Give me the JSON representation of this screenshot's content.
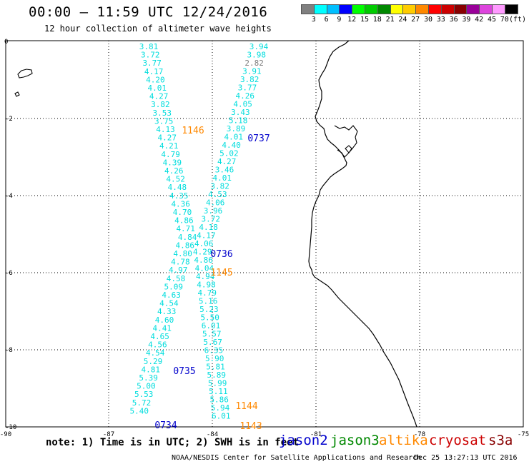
{
  "title": "00:00 — 11:59 UTC 12/24/2016",
  "subtitle": "12 hour collection of altimeter wave heights",
  "color_scale": {
    "labels": [
      "3",
      "6",
      "9",
      "12",
      "15",
      "18",
      "21",
      "24",
      "27",
      "30",
      "33",
      "36",
      "39",
      "42",
      "45",
      "70"
    ],
    "unit": "(ft)",
    "colors": [
      "#808080",
      "#00ffff",
      "#00bfff",
      "#0000ff",
      "#00ff00",
      "#00cc00",
      "#008800",
      "#ffff00",
      "#ffcc00",
      "#ff8800",
      "#ff0000",
      "#cc0000",
      "#880000",
      "#990099",
      "#dd44dd",
      "#ff99ff",
      "#000000"
    ]
  },
  "axes": {
    "lat_labels": [
      "0",
      "-2",
      "-4",
      "-6",
      "-8",
      "-10"
    ],
    "lon_labels": [
      "-90",
      "-87",
      "-84",
      "-81",
      "-78",
      "-75"
    ]
  },
  "tracks": [
    {
      "satellite": "jason2",
      "pass_labels": [
        {
          "text": "0737",
          "color": "#0000cc"
        },
        {
          "text": "0736",
          "color": "#0000cc"
        },
        {
          "text": "0735",
          "color": "#0000cc"
        },
        {
          "text": "0734",
          "color": "#0000cc"
        }
      ]
    },
    {
      "satellite": "altika",
      "pass_labels": [
        {
          "text": "1146",
          "color": "#ff8800"
        },
        {
          "text": "1145",
          "color": "#ff8800"
        },
        {
          "text": "1144",
          "color": "#ff8800"
        },
        {
          "text": "1143",
          "color": "#ff8800"
        }
      ]
    }
  ],
  "track_left_values": [
    "3.81",
    "3.72",
    "3.77",
    "4.17",
    "4.20",
    "4.01",
    "4.27",
    "3.82",
    "3.53",
    "3.75",
    "4.13",
    "4.27",
    "4.21",
    "4.79",
    "4.39",
    "4.26",
    "4.52",
    "4.48",
    "4.35",
    "4.36",
    "4.70",
    "4.86",
    "4.71",
    "4.84",
    "4.86",
    "4.80",
    "4.78",
    "4.97",
    "4.58",
    "5.09",
    "4.63",
    "4.54",
    "4.33",
    "4.60",
    "4.41",
    "4.65",
    "4.56",
    "4.54",
    "5.29",
    "4.81",
    "5.39",
    "5.00",
    "5.53",
    "5.72",
    "5.40"
  ],
  "track_right_values": [
    "3.94",
    "3.98",
    "2.82",
    "3.91",
    "3.82",
    "3.77",
    "4.26",
    "4.05",
    "3.43",
    "5.18",
    "3.89",
    "4.01",
    "4.40",
    "5.02",
    "4.27",
    "3.46",
    "4.01",
    "3.82",
    "4.53",
    "4.06",
    "3.96",
    "3.72",
    "4.18",
    "4.17",
    "4.06",
    "4.29",
    "4.86",
    "4.04",
    "4.94",
    "4.98",
    "4.79",
    "5.16",
    "5.23",
    "5.50",
    "6.01",
    "5.57",
    "5.67",
    "6.35",
    "5.90",
    "5.81",
    "5.89",
    "5.99",
    "5.11",
    "5.86",
    "5.94",
    "6.01"
  ],
  "note": "note: 1) Time is in UTC; 2) SWH is in feet",
  "legend": [
    {
      "name": "jason2",
      "color": "#0000cc"
    },
    {
      "name": "jason3",
      "color": "#008800"
    },
    {
      "name": "altika",
      "color": "#ff8800"
    },
    {
      "name": "cryosat",
      "color": "#cc0000"
    },
    {
      "name": "s3a",
      "color": "#880000"
    }
  ],
  "credit": "NOAA/NESDIS Center for Satellite Applications and Research",
  "timestamp": "Dec 25 13:27:13 UTC 2016"
}
